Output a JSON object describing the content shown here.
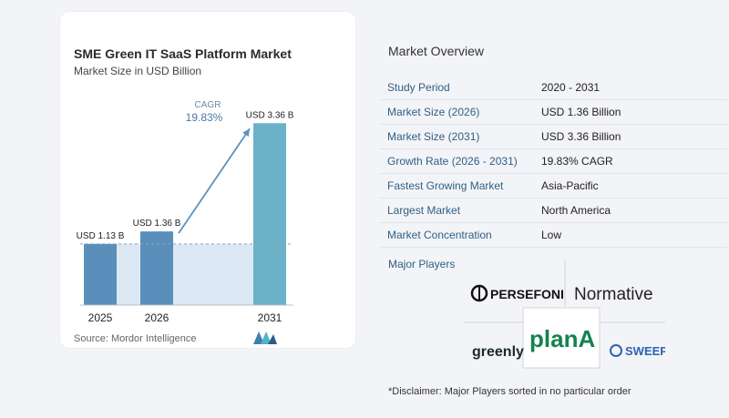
{
  "chart_data": {
    "type": "bar",
    "title": "SME Green IT SaaS Platform Market",
    "subtitle": "Market Size in USD Billion",
    "categories": [
      "2025",
      "2026",
      "2031"
    ],
    "values": [
      1.13,
      1.36,
      3.36
    ],
    "value_labels": [
      "USD 1.13 B",
      "USD 1.36 B",
      "USD 3.36 B"
    ],
    "ylim": [
      0,
      3.6
    ],
    "annotation": {
      "label": "CAGR",
      "value": "19.83%"
    },
    "colors": {
      "bar": "#5a8fbb",
      "bar_last": "#6bb1c7",
      "band": "#dce8f3",
      "arrow": "#5a93c0"
    }
  },
  "source": "Source: Mordor Intelligence",
  "overview": {
    "title": "Market Overview",
    "rows": [
      {
        "key": "Study Period",
        "value": "2020 - 2031"
      },
      {
        "key": "Market Size (2026)",
        "value": "USD 1.36 Billion"
      },
      {
        "key": "Market Size (2031)",
        "value": "USD 3.36 Billion"
      },
      {
        "key": "Growth Rate (2026 - 2031)",
        "value": "19.83% CAGR"
      },
      {
        "key": "Fastest Growing Market",
        "value": "Asia-Pacific"
      },
      {
        "key": "Largest Market",
        "value": "North America"
      },
      {
        "key": "Market Concentration",
        "value": "Low"
      }
    ],
    "players_title": "Major Players",
    "players": [
      "PERSEFONI",
      "Normative",
      "greenly",
      "planA",
      "SWEEP"
    ],
    "disclaimer": "*Disclaimer: Major Players sorted in no particular order"
  }
}
